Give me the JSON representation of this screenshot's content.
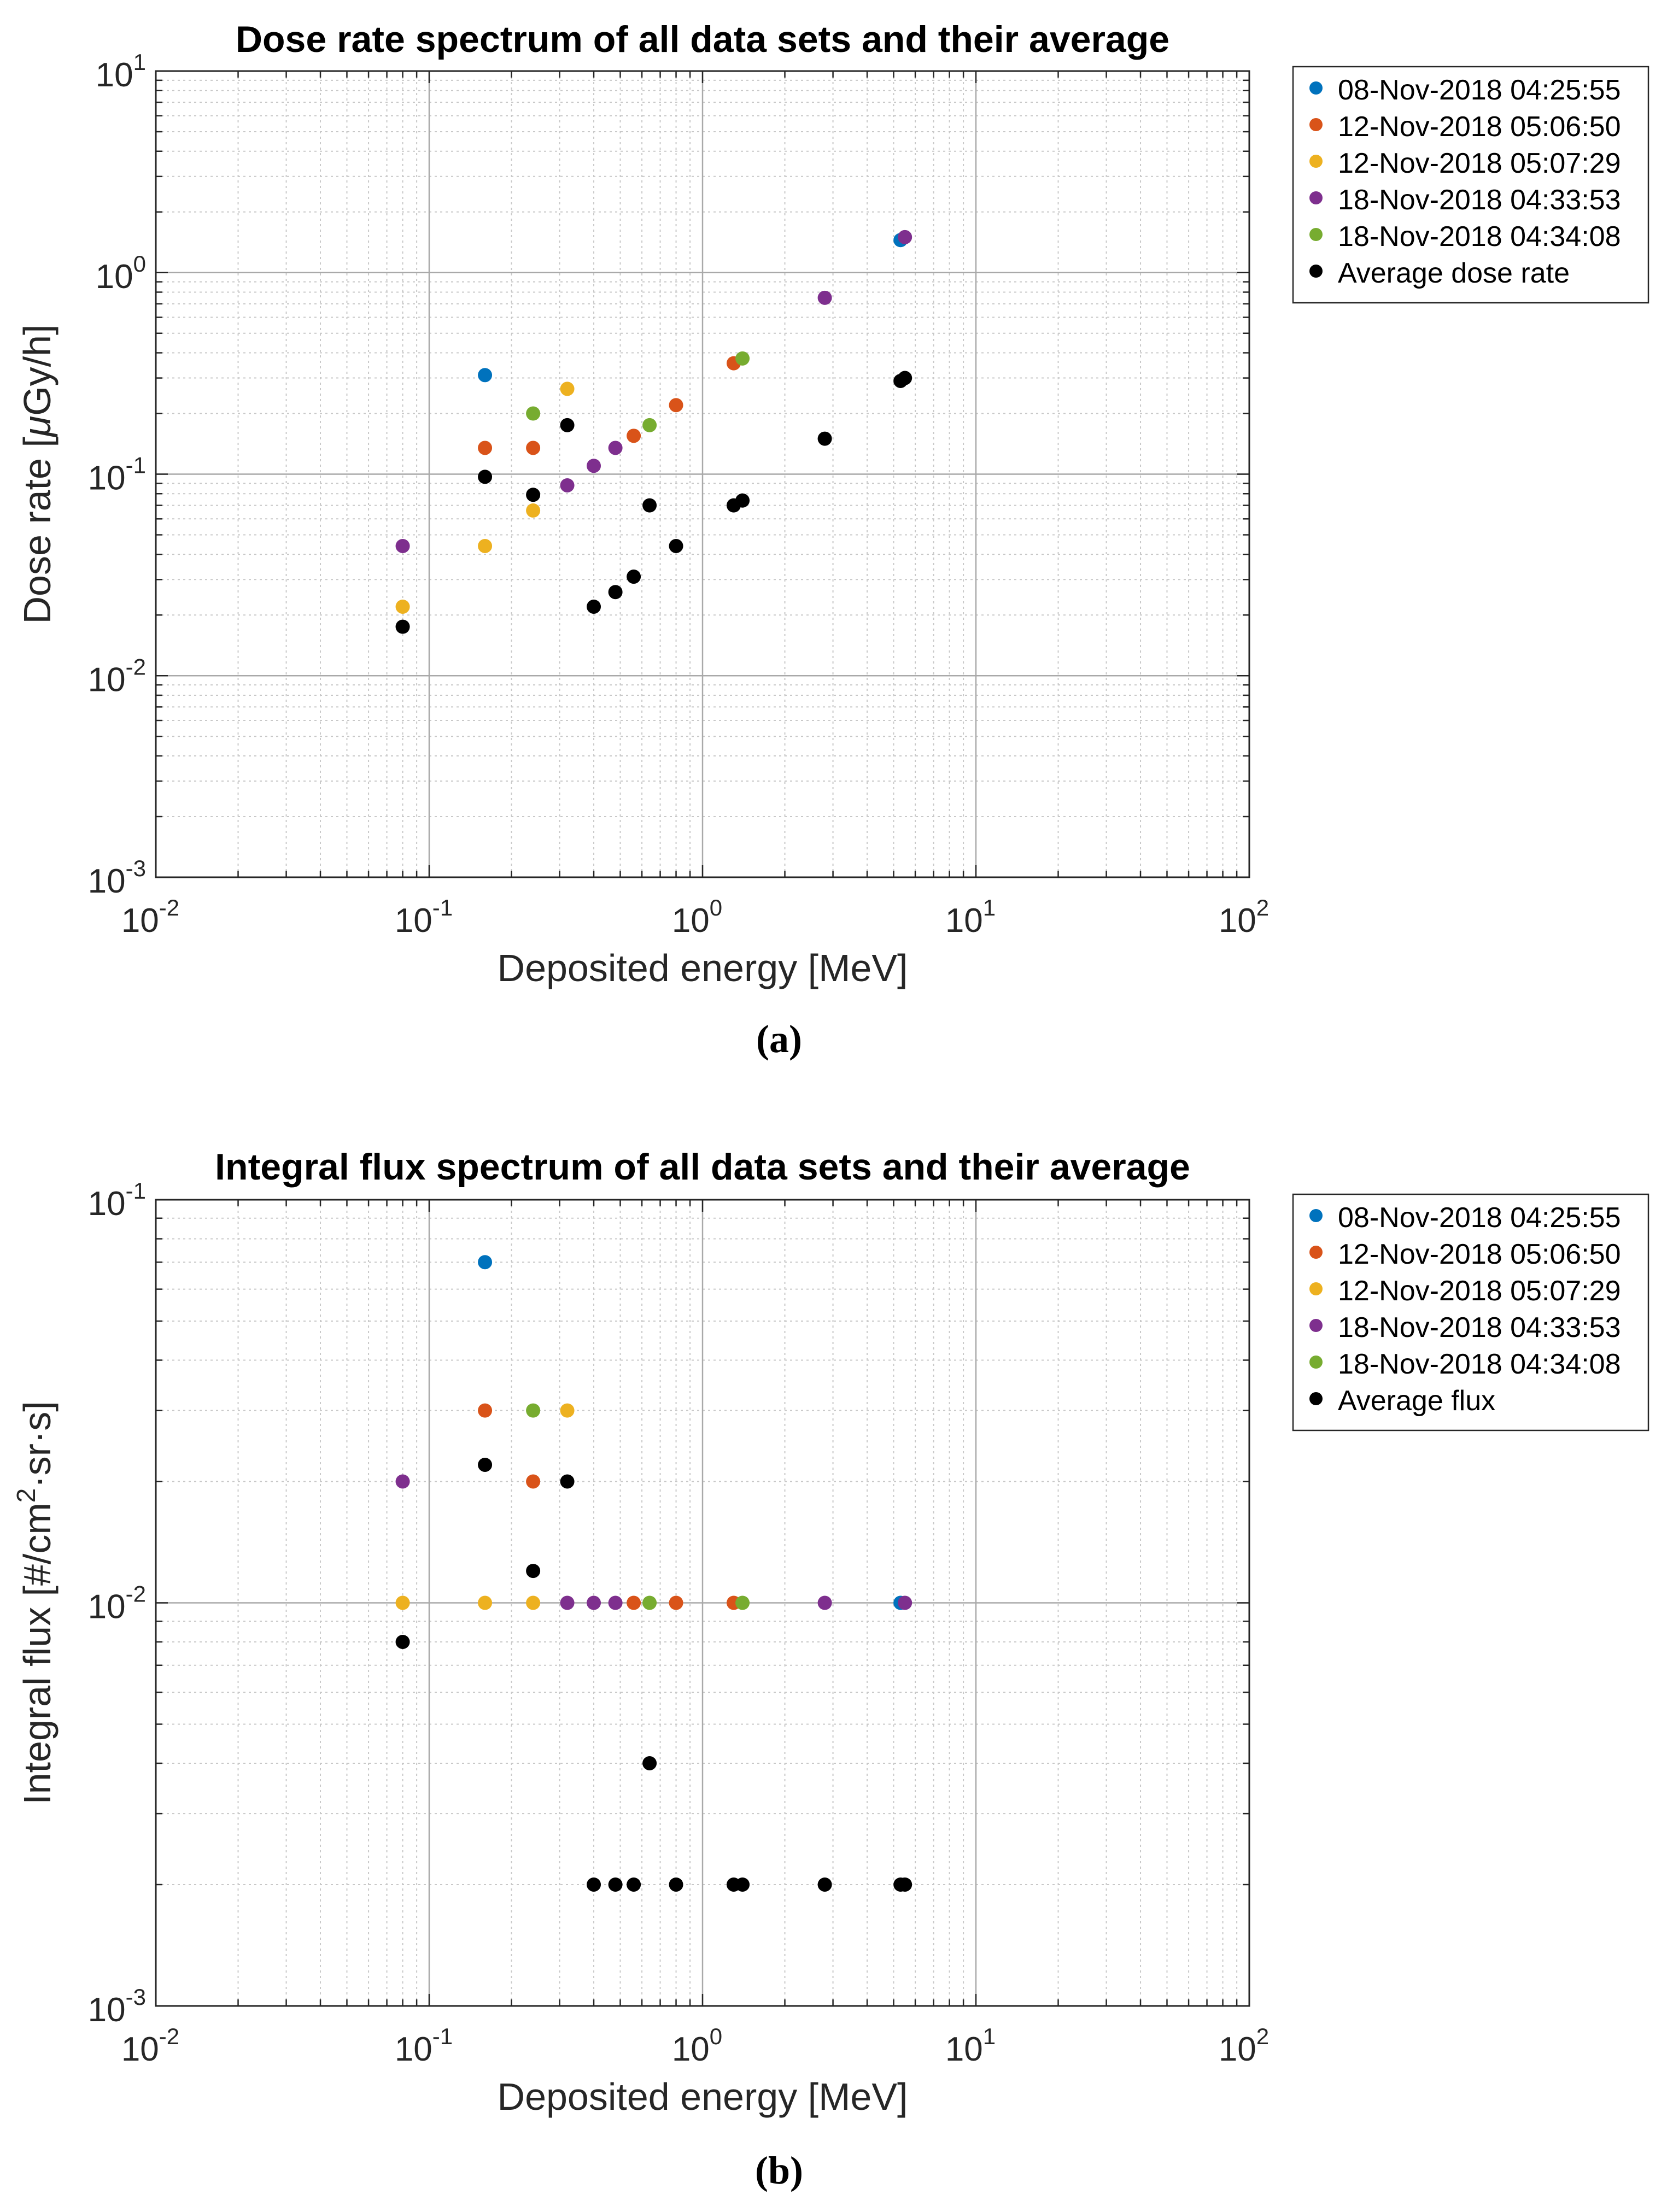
{
  "chart_data": [
    {
      "type": "scatter",
      "title": "Dose rate spectrum of all data sets and their average",
      "xlabel": "Deposited energy [MeV]",
      "ylabel_prefix": "Dose rate [",
      "ylabel_mu": "μ",
      "ylabel_suffix": "Gy/h]",
      "xscale": "log",
      "yscale": "log",
      "xlim": [
        0.01,
        100
      ],
      "ylim": [
        0.001,
        10
      ],
      "xticks": [
        {
          "base": "10",
          "exp": "-2"
        },
        {
          "base": "10",
          "exp": "-1"
        },
        {
          "base": "10",
          "exp": "0"
        },
        {
          "base": "10",
          "exp": "1"
        },
        {
          "base": "10",
          "exp": "2"
        }
      ],
      "yticks": [
        {
          "base": "10",
          "exp": "-3"
        },
        {
          "base": "10",
          "exp": "-2"
        },
        {
          "base": "10",
          "exp": "-1"
        },
        {
          "base": "10",
          "exp": "0"
        },
        {
          "base": "10",
          "exp": "1"
        }
      ],
      "grid": true,
      "legend_position": "outside-top-right",
      "panel_label": "(a)",
      "series": [
        {
          "name": "08-Nov-2018 04:25:55",
          "color": "#0072BD",
          "points": [
            [
              0.16,
              0.31
            ],
            [
              5.3,
              1.45
            ]
          ]
        },
        {
          "name": "12-Nov-2018 05:06:50",
          "color": "#D95319",
          "points": [
            [
              0.16,
              0.135
            ],
            [
              0.24,
              0.135
            ],
            [
              0.56,
              0.155
            ],
            [
              0.8,
              0.22
            ],
            [
              1.3,
              0.355
            ]
          ]
        },
        {
          "name": "12-Nov-2018 05:07:29",
          "color": "#EDB120",
          "points": [
            [
              0.08,
              0.022
            ],
            [
              0.16,
              0.044
            ],
            [
              0.24,
              0.066
            ],
            [
              0.32,
              0.265
            ]
          ]
        },
        {
          "name": "18-Nov-2018 04:33:53",
          "color": "#7E2F8E",
          "points": [
            [
              0.08,
              0.044
            ],
            [
              0.32,
              0.088
            ],
            [
              0.4,
              0.11
            ],
            [
              0.48,
              0.135
            ],
            [
              2.8,
              0.75
            ],
            [
              5.5,
              1.5
            ]
          ]
        },
        {
          "name": "18-Nov-2018 04:34:08",
          "color": "#77AC30",
          "points": [
            [
              0.24,
              0.2
            ],
            [
              0.64,
              0.175
            ],
            [
              1.4,
              0.375
            ]
          ]
        },
        {
          "name": "Average dose rate",
          "color": "#000000",
          "points": [
            [
              0.08,
              0.0175
            ],
            [
              0.16,
              0.097
            ],
            [
              0.24,
              0.079
            ],
            [
              0.32,
              0.175
            ],
            [
              0.4,
              0.022
            ],
            [
              0.48,
              0.026
            ],
            [
              0.56,
              0.031
            ],
            [
              0.64,
              0.07
            ],
            [
              0.8,
              0.044
            ],
            [
              1.3,
              0.07
            ],
            [
              1.4,
              0.074
            ],
            [
              2.8,
              0.15
            ],
            [
              5.3,
              0.29
            ],
            [
              5.5,
              0.3
            ]
          ]
        }
      ]
    },
    {
      "type": "scatter",
      "title": "Integral flux spectrum of all data sets and their average",
      "xlabel": "Deposited energy [MeV]",
      "ylabel_prefix": "Integral flux [#/cm",
      "ylabel_sup": "2",
      "ylabel_suffix": "·sr·s]",
      "xscale": "log",
      "yscale": "log",
      "xlim": [
        0.01,
        100
      ],
      "ylim": [
        0.001,
        0.1
      ],
      "xticks": [
        {
          "base": "10",
          "exp": "-2"
        },
        {
          "base": "10",
          "exp": "-1"
        },
        {
          "base": "10",
          "exp": "0"
        },
        {
          "base": "10",
          "exp": "1"
        },
        {
          "base": "10",
          "exp": "2"
        }
      ],
      "yticks": [
        {
          "base": "10",
          "exp": "-3"
        },
        {
          "base": "10",
          "exp": "-2"
        },
        {
          "base": "10",
          "exp": "-1"
        }
      ],
      "grid": true,
      "legend_position": "outside-top-right",
      "panel_label": "(b)",
      "series": [
        {
          "name": "08-Nov-2018 04:25:55",
          "color": "#0072BD",
          "points": [
            [
              0.16,
              0.07
            ],
            [
              5.3,
              0.01
            ]
          ]
        },
        {
          "name": "12-Nov-2018 05:06:50",
          "color": "#D95319",
          "points": [
            [
              0.16,
              0.03
            ],
            [
              0.24,
              0.02
            ],
            [
              0.56,
              0.01
            ],
            [
              0.8,
              0.01
            ],
            [
              1.3,
              0.01
            ]
          ]
        },
        {
          "name": "12-Nov-2018 05:07:29",
          "color": "#EDB120",
          "points": [
            [
              0.08,
              0.01
            ],
            [
              0.16,
              0.01
            ],
            [
              0.24,
              0.01
            ],
            [
              0.32,
              0.03
            ]
          ]
        },
        {
          "name": "18-Nov-2018 04:33:53",
          "color": "#7E2F8E",
          "points": [
            [
              0.08,
              0.02
            ],
            [
              0.32,
              0.01
            ],
            [
              0.4,
              0.01
            ],
            [
              0.48,
              0.01
            ],
            [
              2.8,
              0.01
            ],
            [
              5.5,
              0.01
            ]
          ]
        },
        {
          "name": "18-Nov-2018 04:34:08",
          "color": "#77AC30",
          "points": [
            [
              0.24,
              0.03
            ],
            [
              0.64,
              0.01
            ],
            [
              1.4,
              0.01
            ]
          ]
        },
        {
          "name": "Average flux",
          "color": "#000000",
          "points": [
            [
              0.08,
              0.008
            ],
            [
              0.16,
              0.022
            ],
            [
              0.24,
              0.012
            ],
            [
              0.32,
              0.02
            ],
            [
              0.4,
              0.002
            ],
            [
              0.48,
              0.002
            ],
            [
              0.56,
              0.002
            ],
            [
              0.64,
              0.004
            ],
            [
              0.8,
              0.002
            ],
            [
              1.3,
              0.002
            ],
            [
              1.4,
              0.002
            ],
            [
              2.8,
              0.002
            ],
            [
              5.3,
              0.002
            ],
            [
              5.5,
              0.002
            ]
          ]
        }
      ]
    }
  ]
}
